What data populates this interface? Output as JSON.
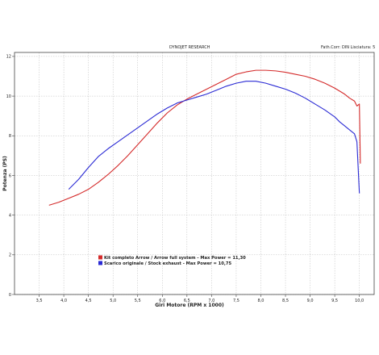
{
  "header": {
    "center": "DYNOJET RESEARCH",
    "right": "Fath.Corr: DIN  Lisciatura: 5"
  },
  "chart_data": {
    "type": "line",
    "title": "",
    "xlabel": "Giri Motore (RPM x 1000)",
    "ylabel": "Potenza (PS)",
    "xlim": [
      3.0,
      10.3
    ],
    "ylim": [
      0,
      12.2
    ],
    "xticks": [
      "3,5",
      "4,0",
      "4,5",
      "5,0",
      "5,5",
      "6,0",
      "6,5",
      "7,0",
      "7,5",
      "8,0",
      "8,5",
      "9,0",
      "9,5",
      "10,0"
    ],
    "xtick_values": [
      3.5,
      4.0,
      4.5,
      5.0,
      5.5,
      6.0,
      6.5,
      7.0,
      7.5,
      8.0,
      8.5,
      9.0,
      9.5,
      10.0
    ],
    "yticks": [
      "0",
      "2",
      "4",
      "6",
      "8",
      "10",
      "12"
    ],
    "ytick_values": [
      0,
      2,
      4,
      6,
      8,
      10,
      12
    ],
    "grid": true,
    "legend_position": "bottom-left",
    "colors": {
      "series1": "#d42a2a",
      "series2": "#2a2ad4"
    },
    "series": [
      {
        "name": "Kit completo Arrow / Arrow full system - Max Power = 11,30",
        "color": "#d42a2a",
        "x": [
          3.7,
          3.9,
          4.1,
          4.3,
          4.5,
          4.7,
          4.9,
          5.1,
          5.3,
          5.5,
          5.7,
          5.9,
          6.1,
          6.3,
          6.5,
          6.7,
          6.9,
          7.1,
          7.3,
          7.5,
          7.7,
          7.9,
          8.1,
          8.3,
          8.5,
          8.7,
          8.9,
          9.1,
          9.3,
          9.5,
          9.7,
          9.8,
          9.9,
          9.95,
          10.0,
          10.02
        ],
        "y": [
          4.5,
          4.65,
          4.85,
          5.05,
          5.3,
          5.65,
          6.05,
          6.5,
          7.0,
          7.55,
          8.1,
          8.65,
          9.15,
          9.55,
          9.85,
          10.1,
          10.35,
          10.6,
          10.85,
          11.1,
          11.22,
          11.3,
          11.3,
          11.27,
          11.2,
          11.1,
          11.0,
          10.85,
          10.65,
          10.4,
          10.1,
          9.9,
          9.75,
          9.5,
          9.6,
          6.6
        ]
      },
      {
        "name": "Scarico originale / Stock exhaust - Max Power = 10,75",
        "color": "#2a2ad4",
        "x": [
          4.1,
          4.3,
          4.5,
          4.7,
          4.9,
          5.1,
          5.3,
          5.5,
          5.7,
          5.9,
          6.1,
          6.3,
          6.5,
          6.7,
          6.9,
          7.1,
          7.3,
          7.5,
          7.7,
          7.9,
          8.1,
          8.3,
          8.5,
          8.7,
          8.9,
          9.1,
          9.3,
          9.5,
          9.6,
          9.7,
          9.8,
          9.9,
          9.95,
          10.0
        ],
        "y": [
          5.3,
          5.8,
          6.4,
          6.95,
          7.35,
          7.7,
          8.05,
          8.4,
          8.75,
          9.1,
          9.4,
          9.65,
          9.8,
          9.95,
          10.1,
          10.3,
          10.5,
          10.65,
          10.75,
          10.75,
          10.65,
          10.5,
          10.35,
          10.15,
          9.9,
          9.6,
          9.3,
          8.95,
          8.7,
          8.5,
          8.3,
          8.1,
          7.7,
          5.1
        ]
      }
    ]
  }
}
